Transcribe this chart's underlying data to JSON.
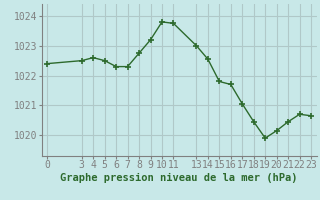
{
  "x": [
    0,
    3,
    4,
    5,
    6,
    7,
    8,
    9,
    10,
    11,
    13,
    14,
    15,
    16,
    17,
    18,
    19,
    20,
    21,
    22,
    23
  ],
  "y": [
    1022.4,
    1022.5,
    1022.6,
    1022.5,
    1022.3,
    1022.3,
    1022.75,
    1023.2,
    1023.8,
    1023.75,
    1023.0,
    1022.55,
    1021.8,
    1021.7,
    1021.05,
    1020.45,
    1019.9,
    1020.15,
    1020.45,
    1020.7,
    1020.65
  ],
  "line_color": "#2d6a2d",
  "marker": "+",
  "bg_color": "#c8e8e8",
  "grid_color": "#b0c8c8",
  "xlabel": "Graphe pression niveau de la mer (hPa)",
  "xlabel_fontsize": 7.5,
  "tick_fontsize": 7,
  "ytick_labels": [
    "1020",
    "1021",
    "1022",
    "1023",
    "1024"
  ],
  "ytick_values": [
    1020,
    1021,
    1022,
    1023,
    1024
  ],
  "ylim": [
    1019.3,
    1024.4
  ],
  "xtick_values": [
    0,
    3,
    4,
    5,
    6,
    7,
    8,
    9,
    10,
    11,
    13,
    14,
    15,
    16,
    17,
    18,
    19,
    20,
    21,
    22,
    23
  ],
  "xlim": [
    -0.5,
    23.5
  ]
}
